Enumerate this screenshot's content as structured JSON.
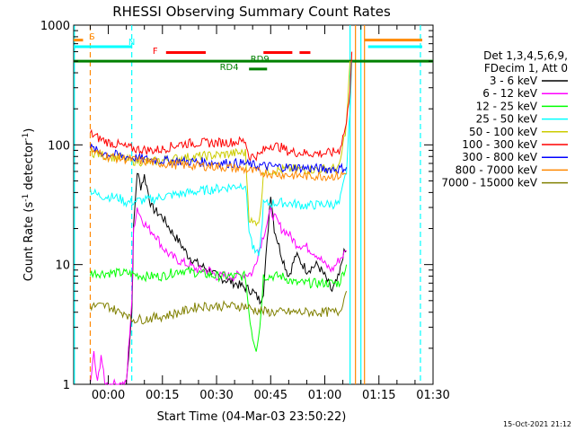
{
  "chart_data": {
    "type": "line",
    "title": "RHESSI Observing Summary Count Rates",
    "xlabel": "Start Time (04-Mar-03 23:50:22)",
    "ylabel_main": "Count Rate (s",
    "ylabel_sup1": "-1",
    "ylabel_mid": " detector",
    "ylabel_sup2": "-1",
    "ylabel_end": ")",
    "yscale": "log",
    "ylim": [
      1,
      1000
    ],
    "xlim_minutes": [
      -9.6,
      90
    ],
    "x_ticks": [
      {
        "m": 0,
        "label": "00:00"
      },
      {
        "m": 15,
        "label": "00:15"
      },
      {
        "m": 30,
        "label": "00:30"
      },
      {
        "m": 45,
        "label": "00:45"
      },
      {
        "m": 60,
        "label": "01:00"
      },
      {
        "m": 75,
        "label": "01:15"
      },
      {
        "m": 90,
        "label": "01:30"
      }
    ],
    "y_ticks": [
      {
        "v": 1,
        "label": "1"
      },
      {
        "v": 10,
        "label": "10"
      },
      {
        "v": 100,
        "label": "100"
      },
      {
        "v": 1000,
        "label": "1000"
      }
    ],
    "legend_header": [
      "Det 1,3,4,5,6,9,",
      "FDecim 1, Att 0"
    ],
    "legend_position": "right",
    "series": [
      {
        "name": "3 - 6 keV",
        "color": "#000000",
        "points": [
          [
            5,
            1
          ],
          [
            6.5,
            4
          ],
          [
            7,
            20
          ],
          [
            8,
            60
          ],
          [
            9,
            45
          ],
          [
            10,
            55
          ],
          [
            12,
            30
          ],
          [
            15,
            25
          ],
          [
            18,
            18
          ],
          [
            20,
            15
          ],
          [
            22,
            12
          ],
          [
            25,
            10
          ],
          [
            28,
            9
          ],
          [
            30,
            8
          ],
          [
            35,
            7
          ],
          [
            40,
            6
          ],
          [
            42,
            5
          ],
          [
            43,
            6
          ],
          [
            44,
            15
          ],
          [
            45,
            40
          ],
          [
            46,
            20
          ],
          [
            48,
            12
          ],
          [
            50,
            8
          ],
          [
            52,
            12
          ],
          [
            55,
            9
          ],
          [
            58,
            10
          ],
          [
            60,
            8
          ],
          [
            62,
            6
          ],
          [
            64,
            8
          ],
          [
            65,
            12
          ],
          [
            66,
            13
          ]
        ]
      },
      {
        "name": "6 - 12 keV",
        "color": "#ff00ff",
        "points": [
          [
            -5,
            1
          ],
          [
            -4,
            1.8
          ],
          [
            -3,
            1
          ],
          [
            -2,
            1.8
          ],
          [
            -1,
            1
          ],
          [
            5,
            1
          ],
          [
            6.5,
            5
          ],
          [
            7,
            20
          ],
          [
            8,
            30
          ],
          [
            9,
            25
          ],
          [
            11,
            20
          ],
          [
            13,
            18
          ],
          [
            15,
            14
          ],
          [
            17,
            12
          ],
          [
            19,
            11
          ],
          [
            22,
            10
          ],
          [
            25,
            9
          ],
          [
            28,
            9
          ],
          [
            30,
            8
          ],
          [
            35,
            8
          ],
          [
            40,
            8.5
          ],
          [
            42,
            14
          ],
          [
            45,
            28
          ],
          [
            46,
            25
          ],
          [
            48,
            20
          ],
          [
            50,
            18
          ],
          [
            52,
            15
          ],
          [
            55,
            14
          ],
          [
            58,
            12
          ],
          [
            60,
            10
          ],
          [
            62,
            9
          ],
          [
            64,
            11
          ],
          [
            66,
            13
          ]
        ]
      },
      {
        "name": "12 - 25 keV",
        "color": "#00ff00",
        "points": [
          [
            -5,
            8.5
          ],
          [
            0,
            8.5
          ],
          [
            5,
            8.5
          ],
          [
            10,
            8
          ],
          [
            15,
            8
          ],
          [
            20,
            9
          ],
          [
            25,
            8.5
          ],
          [
            30,
            8
          ],
          [
            35,
            8
          ],
          [
            38,
            8
          ],
          [
            39,
            4
          ],
          [
            40,
            2.5
          ],
          [
            41,
            2
          ],
          [
            42,
            3
          ],
          [
            43,
            8
          ],
          [
            48,
            8
          ],
          [
            52,
            7
          ],
          [
            55,
            7
          ],
          [
            60,
            7
          ],
          [
            64,
            7
          ],
          [
            66,
            10
          ]
        ]
      },
      {
        "name": "25 - 50 keV",
        "color": "#00ffff",
        "points": [
          [
            -5,
            42
          ],
          [
            -3,
            38
          ],
          [
            0,
            37
          ],
          [
            3,
            36
          ],
          [
            5,
            33
          ],
          [
            8,
            34
          ],
          [
            12,
            35
          ],
          [
            15,
            37
          ],
          [
            20,
            39
          ],
          [
            25,
            41
          ],
          [
            30,
            43
          ],
          [
            35,
            45
          ],
          [
            38,
            47
          ],
          [
            39,
            20
          ],
          [
            40,
            14
          ],
          [
            41,
            12
          ],
          [
            42,
            13
          ],
          [
            43,
            32
          ],
          [
            48,
            33
          ],
          [
            52,
            32
          ],
          [
            55,
            31
          ],
          [
            60,
            32
          ],
          [
            64,
            32
          ],
          [
            66,
            60
          ],
          [
            67,
            200
          ],
          [
            67.5,
            500
          ]
        ]
      },
      {
        "name": "50 - 100 keV",
        "color": "#cccc00",
        "points": [
          [
            -5,
            88
          ],
          [
            -3,
            84
          ],
          [
            0,
            80
          ],
          [
            3,
            78
          ],
          [
            5,
            75
          ],
          [
            8,
            73
          ],
          [
            12,
            72
          ],
          [
            15,
            74
          ],
          [
            20,
            78
          ],
          [
            25,
            80
          ],
          [
            30,
            82
          ],
          [
            35,
            85
          ],
          [
            38,
            86
          ],
          [
            39,
            25
          ],
          [
            40,
            22
          ],
          [
            41,
            23
          ],
          [
            42,
            24
          ],
          [
            43,
            60
          ],
          [
            48,
            62
          ],
          [
            52,
            63
          ],
          [
            55,
            62
          ],
          [
            60,
            63
          ],
          [
            64,
            64
          ],
          [
            66,
            150
          ],
          [
            67,
            500
          ]
        ]
      },
      {
        "name": "100 - 300 keV",
        "color": "#ff0000",
        "points": [
          [
            -5,
            125
          ],
          [
            -3,
            115
          ],
          [
            0,
            105
          ],
          [
            3,
            100
          ],
          [
            5,
            95
          ],
          [
            8,
            92
          ],
          [
            12,
            90
          ],
          [
            15,
            92
          ],
          [
            18,
            98
          ],
          [
            20,
            102
          ],
          [
            25,
            104
          ],
          [
            30,
            104
          ],
          [
            35,
            106
          ],
          [
            38,
            108
          ],
          [
            39,
            80
          ],
          [
            42,
            82
          ],
          [
            43,
            90
          ],
          [
            45,
            100
          ],
          [
            48,
            95
          ],
          [
            50,
            88
          ],
          [
            55,
            85
          ],
          [
            60,
            85
          ],
          [
            62,
            86
          ],
          [
            64,
            90
          ],
          [
            66,
            150
          ],
          [
            67,
            300
          ],
          [
            67.5,
            600
          ]
        ]
      },
      {
        "name": "300 - 800 keV",
        "color": "#0000ff",
        "points": [
          [
            -5,
            95
          ],
          [
            -3,
            88
          ],
          [
            0,
            84
          ],
          [
            5,
            80
          ],
          [
            10,
            76
          ],
          [
            15,
            74
          ],
          [
            20,
            73
          ],
          [
            25,
            72
          ],
          [
            30,
            71
          ],
          [
            35,
            70
          ],
          [
            38,
            70
          ],
          [
            39,
            68
          ],
          [
            42,
            67
          ],
          [
            45,
            66
          ],
          [
            50,
            65
          ],
          [
            55,
            64
          ],
          [
            60,
            63
          ],
          [
            64,
            63
          ],
          [
            66,
            65
          ]
        ]
      },
      {
        "name": "800 - 7000 keV",
        "color": "#ff8800",
        "points": [
          [
            -5,
            92
          ],
          [
            -3,
            85
          ],
          [
            0,
            80
          ],
          [
            5,
            76
          ],
          [
            10,
            73
          ],
          [
            15,
            70
          ],
          [
            20,
            68
          ],
          [
            25,
            67
          ],
          [
            30,
            66
          ],
          [
            35,
            64
          ],
          [
            38,
            62
          ],
          [
            40,
            60
          ],
          [
            45,
            58
          ],
          [
            50,
            56
          ],
          [
            55,
            55
          ],
          [
            60,
            55
          ],
          [
            64,
            55
          ],
          [
            66,
            58
          ]
        ]
      },
      {
        "name": "7000 - 15000 keV",
        "color": "#808000",
        "points": [
          [
            -5,
            4.5
          ],
          [
            0,
            4.5
          ],
          [
            3,
            4
          ],
          [
            5,
            4
          ],
          [
            6,
            3.5
          ],
          [
            8,
            3.5
          ],
          [
            10,
            3.5
          ],
          [
            15,
            3.7
          ],
          [
            20,
            4
          ],
          [
            25,
            4.5
          ],
          [
            30,
            4.5
          ],
          [
            35,
            4.5
          ],
          [
            38,
            4.5
          ],
          [
            40,
            4.2
          ],
          [
            45,
            4
          ],
          [
            50,
            4
          ],
          [
            55,
            4
          ],
          [
            60,
            4
          ],
          [
            64,
            4
          ],
          [
            66,
            6
          ]
        ]
      }
    ],
    "annotations": [
      {
        "text": "S",
        "color": "#ff8800",
        "m": -4.5
      },
      {
        "text": "N",
        "color": "#00ffff",
        "m": 6.5
      },
      {
        "text": "F",
        "color": "#ff0000",
        "m": 13
      },
      {
        "text": "RD9",
        "color": "#008000",
        "m": 42
      },
      {
        "text": "RD4",
        "color": "#008000",
        "m": 33.5
      }
    ],
    "flag_bars": [
      {
        "color": "#ff8800",
        "from": -9.6,
        "to": -7,
        "level": 750
      },
      {
        "color": "#ff8800",
        "from": 71,
        "to": 87,
        "level": 750
      },
      {
        "color": "#00ffff",
        "from": -9.6,
        "to": 6.5,
        "level": 660
      },
      {
        "color": "#00ffff",
        "from": 72,
        "to": 87,
        "level": 660
      },
      {
        "color": "#ff0000",
        "from": 16,
        "to": 27,
        "level": 590
      },
      {
        "color": "#ff0000",
        "from": 43,
        "to": 51,
        "level": 590
      },
      {
        "color": "#ff0000",
        "from": 53,
        "to": 56,
        "level": 590
      },
      {
        "color": "#008000",
        "from": -9.6,
        "to": 90,
        "level": 500
      },
      {
        "color": "#008000",
        "from": 39,
        "to": 44,
        "level": 430
      }
    ],
    "vlines": [
      {
        "color": "#ff8800",
        "m": -5,
        "dashed": true
      },
      {
        "color": "#00ffff",
        "m": 6.5,
        "dashed": true
      },
      {
        "color": "#00ffff",
        "m": 86.5,
        "dashed": true
      },
      {
        "color": "#00ffff",
        "m": 67,
        "dashed": false
      },
      {
        "color": "#00ffff",
        "m": 70,
        "dashed": false
      },
      {
        "color": "#ff8800",
        "m": 68.5,
        "dashed": false
      },
      {
        "color": "#ff8800",
        "m": 71,
        "dashed": false
      },
      {
        "color": "#00ffff",
        "m": -9.4,
        "dashed": false
      }
    ]
  },
  "timestamp": "15-Oct-2021 21:12"
}
